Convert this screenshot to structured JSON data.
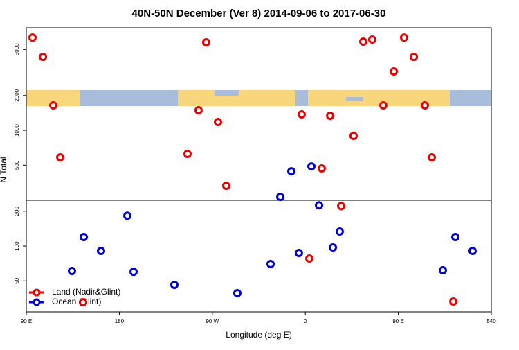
{
  "chart_data": {
    "type": "scatter",
    "title": "40N-50N December (Ver 8)   2014-09-06 to 2017-06-30",
    "x_label": "Longitude (deg E)",
    "y_label": "N Total",
    "xlim": [
      90,
      540
    ],
    "xticks": [
      {
        "value": 90,
        "label": "90 E"
      },
      180,
      {
        "value": 270,
        "label": "90 W"
      },
      {
        "value": 360,
        "label": "0"
      },
      {
        "value": 450,
        "label": "90 E"
      },
      540
    ],
    "ylim": [
      27,
      7700
    ],
    "log_y": true,
    "yticks": [
      50,
      100,
      200,
      500,
      1000,
      2000,
      5000
    ],
    "grid": false,
    "legend": "bottom-left",
    "series": [
      {
        "name": "Land (Nadir&Glint)",
        "color": "#ee0000",
        "x": [
          96.0,
          106.1,
          116.1,
          122.8,
          144.9,
          246.0,
          256.7,
          264.1,
          275.5,
          283.5,
          356.5,
          363.9,
          375.9,
          384.0,
          394.7,
          406.7,
          416.1,
          424.8,
          435.5,
          445.6,
          455.6,
          465.0,
          475.7,
          482.4,
          503.2
        ],
        "values": [
          6340,
          4310,
          1643,
          584,
          32.7,
          626,
          1492,
          5760,
          1180,
          332,
          1373,
          78,
          469,
          1336,
          222,
          896,
          5840,
          6090,
          1643,
          3230,
          6340,
          4310,
          1643,
          584,
          33.2
        ]
      },
      {
        "name": "Ocean (Glint)",
        "color": "#0000dd",
        "x": [
          134.2,
          145.6,
          162.3,
          187.8,
          193.8,
          233.3,
          294.2,
          326.4,
          335.8,
          346.5,
          353.8,
          365.9,
          373.3,
          386.7,
          393.3,
          493.1,
          505.2,
          521.9
        ],
        "values": [
          60.9,
          119.7,
          90.8,
          183,
          60.0,
          46.2,
          39.2,
          69.9,
          266,
          443,
          87.1,
          488,
          225,
          97.3,
          133.6,
          61.7,
          119.7,
          90.8
        ]
      }
    ]
  }
}
